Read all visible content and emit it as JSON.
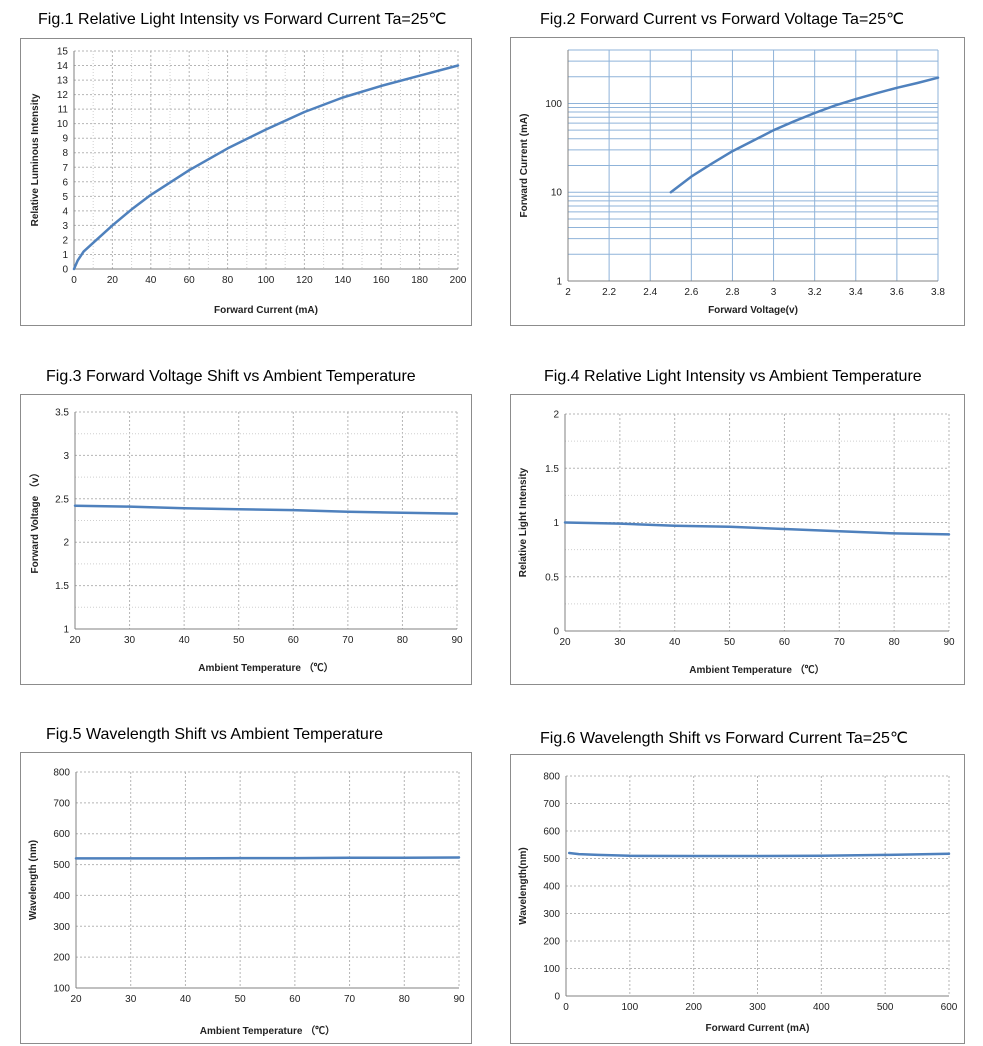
{
  "chart_data": [
    {
      "type": "line",
      "title": "Fig.1 Relative Light Intensity vs Forward Current Ta=25℃",
      "xlabel": "Forward Current  (mA)",
      "ylabel": "Relative Luminous Intensity",
      "xlim": [
        0,
        200
      ],
      "ylim": [
        0,
        15
      ],
      "xticks": [
        0,
        20,
        40,
        60,
        80,
        100,
        120,
        140,
        160,
        180,
        200
      ],
      "yticks": [
        0,
        1,
        2,
        3,
        4,
        5,
        6,
        7,
        8,
        9,
        10,
        11,
        12,
        13,
        14,
        15
      ],
      "xminor": 2,
      "yscale": "linear",
      "grid": true,
      "line_color": "#4f81bd",
      "series": [
        {
          "x": [
            0,
            2,
            5,
            10,
            20,
            30,
            40,
            60,
            80,
            100,
            120,
            140,
            160,
            180,
            200
          ],
          "y": [
            0,
            0.6,
            1.2,
            1.8,
            3.0,
            4.1,
            5.1,
            6.8,
            8.3,
            9.6,
            10.8,
            11.8,
            12.6,
            13.3,
            14.0
          ]
        }
      ]
    },
    {
      "type": "line",
      "title": "Fig.2 Forward Current vs Forward Voltage Ta=25℃",
      "xlabel": "Forward Voltage(v)",
      "ylabel": "Forward Current (mA)",
      "xlim": [
        2,
        3.8
      ],
      "ylim": [
        1,
        400
      ],
      "xticks": [
        2,
        2.2,
        2.4,
        2.6,
        2.8,
        3,
        3.2,
        3.4,
        3.6,
        3.8
      ],
      "yticks": [
        1,
        10,
        100
      ],
      "yscale": "log",
      "grid": true,
      "line_color": "#4f81bd",
      "series": [
        {
          "x": [
            2.5,
            2.6,
            2.7,
            2.8,
            2.9,
            3.0,
            3.1,
            3.2,
            3.3,
            3.4,
            3.5,
            3.6,
            3.7,
            3.8
          ],
          "y": [
            10,
            15,
            21,
            29,
            38,
            50,
            63,
            78,
            95,
            112,
            130,
            150,
            170,
            195
          ]
        }
      ]
    },
    {
      "type": "line",
      "title": "Fig.3 Forward Voltage Shift vs Ambient Temperature",
      "xlabel": "Ambient Temperature （℃）",
      "ylabel": "Forward Voltage （v）",
      "xlim": [
        20,
        90
      ],
      "ylim": [
        1,
        3.5
      ],
      "xticks": [
        20,
        30,
        40,
        50,
        60,
        70,
        80,
        90
      ],
      "yticks": [
        1,
        1.5,
        2,
        2.5,
        3,
        3.5
      ],
      "yminor": 2,
      "yscale": "linear",
      "grid": true,
      "line_color": "#4f81bd",
      "series": [
        {
          "x": [
            20,
            30,
            40,
            50,
            60,
            70,
            80,
            90
          ],
          "y": [
            2.42,
            2.41,
            2.39,
            2.38,
            2.37,
            2.35,
            2.34,
            2.33
          ]
        }
      ]
    },
    {
      "type": "line",
      "title": "Fig.4 Relative Light Intensity vs Ambient Temperature",
      "xlabel": "Ambient Temperature （℃）",
      "ylabel": "Relative Light Intensity",
      "xlim": [
        20,
        90
      ],
      "ylim": [
        0,
        2
      ],
      "xticks": [
        20,
        30,
        40,
        50,
        60,
        70,
        80,
        90
      ],
      "yticks": [
        0,
        0.5,
        1,
        1.5,
        2
      ],
      "yminor": 2,
      "yscale": "linear",
      "grid": true,
      "line_color": "#4f81bd",
      "series": [
        {
          "x": [
            20,
            30,
            40,
            50,
            60,
            70,
            80,
            90
          ],
          "y": [
            1.0,
            0.99,
            0.97,
            0.96,
            0.94,
            0.92,
            0.9,
            0.89
          ]
        }
      ]
    },
    {
      "type": "line",
      "title": "Fig.5 Wavelength Shift vs Ambient Temperature",
      "xlabel": "Ambient Temperature （℃）",
      "ylabel": "Wavelength (nm)",
      "xlim": [
        20,
        90
      ],
      "ylim": [
        100,
        800
      ],
      "xticks": [
        20,
        30,
        40,
        50,
        60,
        70,
        80,
        90
      ],
      "yticks": [
        100,
        200,
        300,
        400,
        500,
        600,
        700,
        800
      ],
      "yscale": "linear",
      "grid": true,
      "line_color": "#4f81bd",
      "series": [
        {
          "x": [
            20,
            30,
            40,
            50,
            60,
            70,
            80,
            90
          ],
          "y": [
            520,
            520,
            520,
            521,
            521,
            522,
            522,
            523
          ]
        }
      ]
    },
    {
      "type": "line",
      "title": "Fig.6 Wavelength Shift vs Forward Current Ta=25℃",
      "xlabel": "Forward Current  (mA)",
      "ylabel": "Wavelength(nm)",
      "xlim": [
        0,
        600
      ],
      "ylim": [
        0,
        800
      ],
      "xticks": [
        0,
        100,
        200,
        300,
        400,
        500,
        600
      ],
      "yticks": [
        0,
        100,
        200,
        300,
        400,
        500,
        600,
        700,
        800
      ],
      "yscale": "linear",
      "grid": true,
      "line_color": "#4f81bd",
      "series": [
        {
          "x": [
            5,
            20,
            50,
            100,
            200,
            300,
            400,
            500,
            600
          ],
          "y": [
            520,
            516,
            513,
            510,
            509,
            509,
            510,
            513,
            517
          ]
        }
      ]
    }
  ]
}
